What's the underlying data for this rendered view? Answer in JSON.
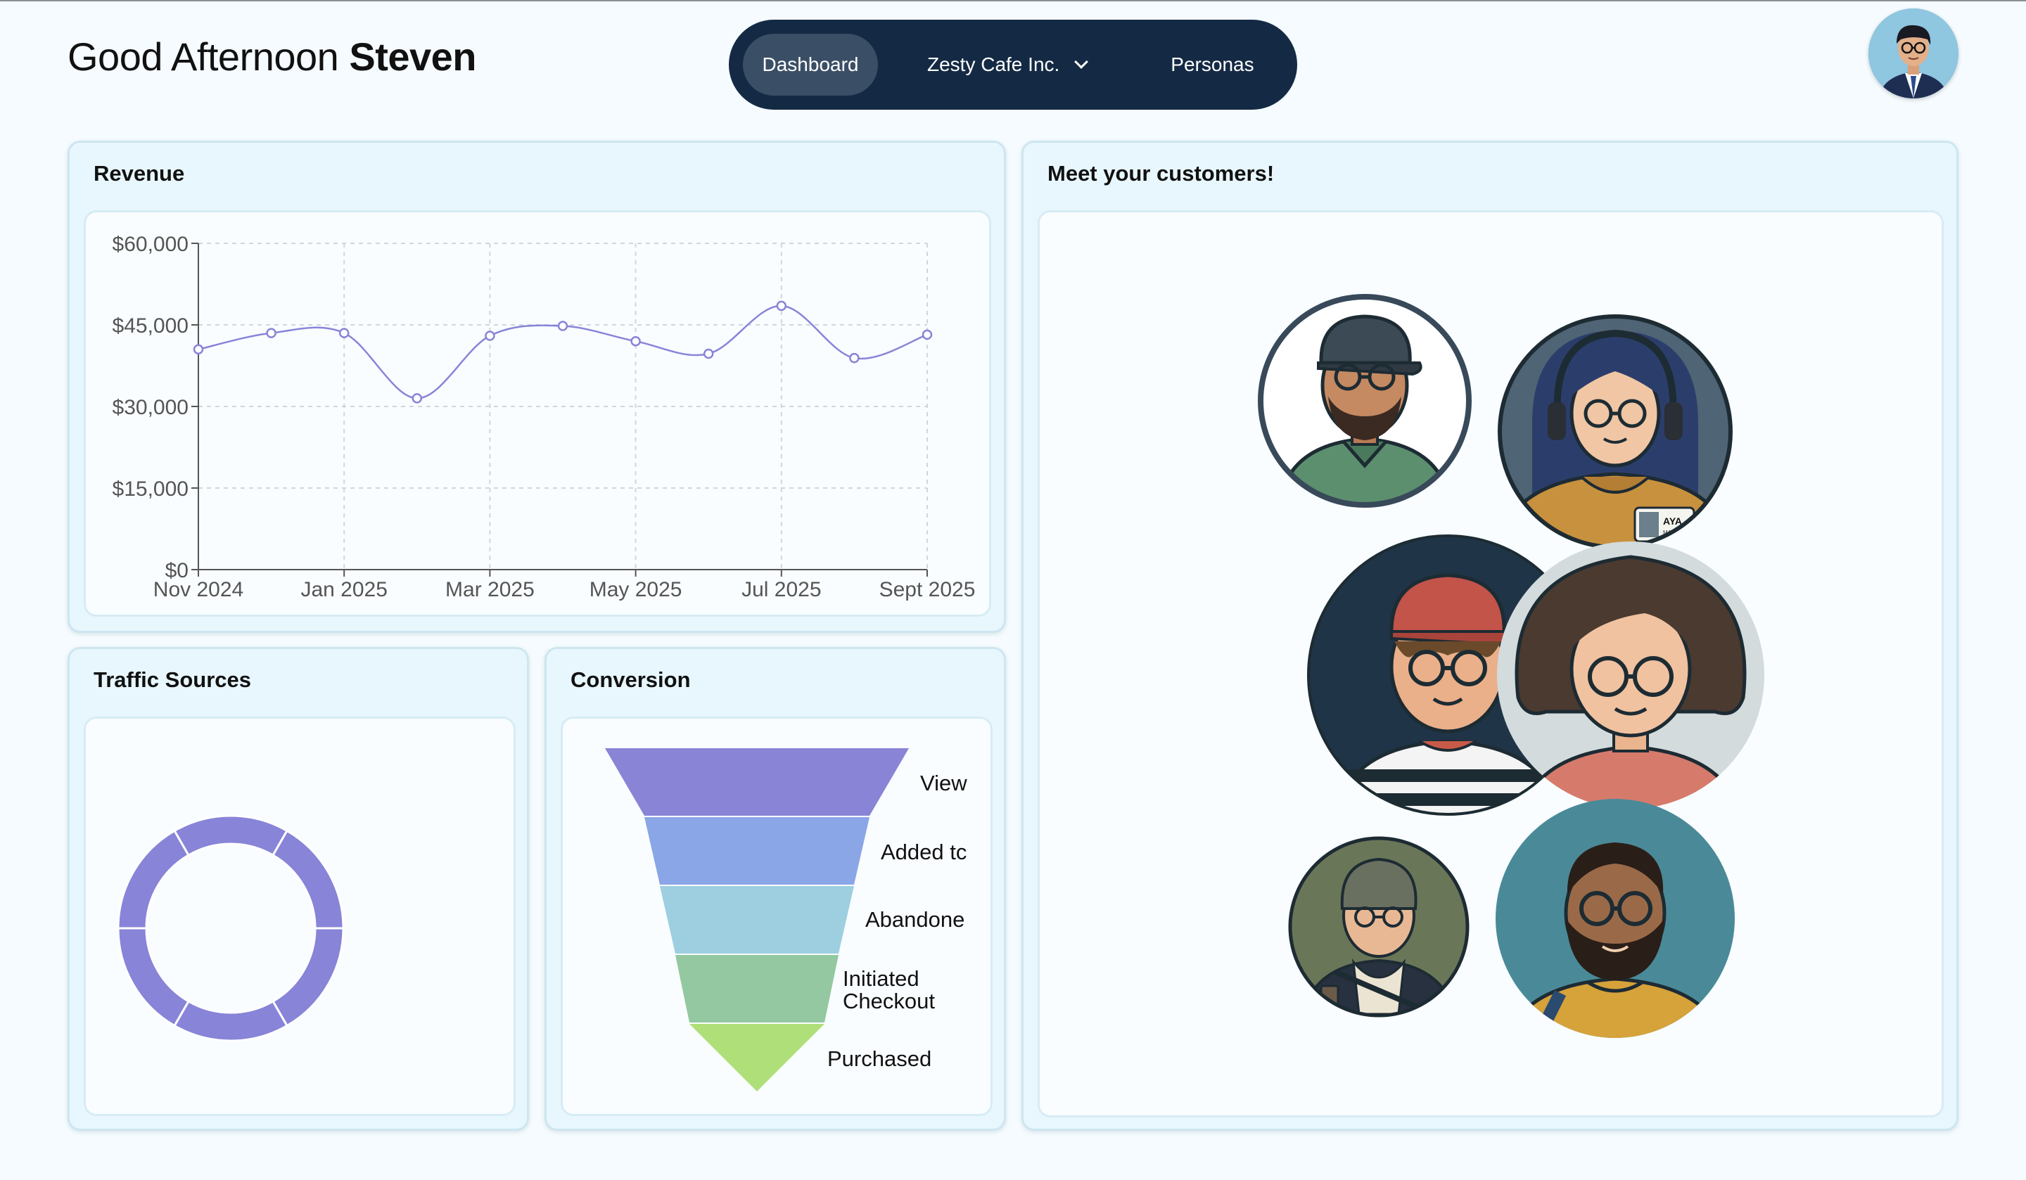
{
  "header": {
    "greeting_prefix": "Good Afternoon",
    "user_name": "Steven"
  },
  "nav": {
    "items": [
      {
        "label": "Dashboard",
        "active": true
      },
      {
        "label": "Zesty Cafe Inc.",
        "dropdown": true
      },
      {
        "label": "Personas"
      }
    ]
  },
  "revenue": {
    "title": "Revenue"
  },
  "traffic": {
    "title": "Traffic Sources"
  },
  "conversion": {
    "title": "Conversion",
    "stages": [
      {
        "label": "View",
        "color": "#8a84d6"
      },
      {
        "label": "Added tc",
        "color": "#8aa6e6"
      },
      {
        "label": "Abandone",
        "color": "#9dcfe0"
      },
      {
        "label": "Initiated Checkout",
        "line1": "Initiated",
        "line2": "Checkout",
        "color": "#93c8a0"
      },
      {
        "label": "Purchased",
        "color": "#aedf78"
      }
    ]
  },
  "customers": {
    "title": "Meet your customers!",
    "badge_name": "AYA",
    "badge_sub": "MADYEN"
  },
  "chart_data": [
    {
      "type": "line",
      "title": "",
      "xlabel": "",
      "ylabel": "",
      "x": [
        "Nov 2024",
        "Dec 2024",
        "Jan 2025",
        "Feb 2025",
        "Mar 2025",
        "Apr 2025",
        "May 2025",
        "Jun 2025",
        "Jul 2025",
        "Aug 2025",
        "Sept 2025"
      ],
      "x_tick_labels": [
        "Nov 2024",
        "Jan 2025",
        "Mar 2025",
        "May 2025",
        "Jul 2025",
        "Sept 2025"
      ],
      "y_tick_labels": [
        "$0",
        "$15,000",
        "$30,000",
        "$45,000",
        "$60,000"
      ],
      "series": [
        {
          "values": [
            40500,
            43500,
            43500,
            31500,
            43000,
            44800,
            42000,
            39700,
            48500,
            38900,
            43200
          ],
          "color": "#8884d8"
        }
      ],
      "ylim": [
        0,
        60000
      ],
      "grid": true,
      "grid_style": "dashed",
      "curve": "smooth"
    },
    {
      "type": "pie",
      "variant": "donut",
      "slices": 6,
      "values": [
        1,
        1,
        1,
        1,
        1,
        1
      ],
      "color": "#8884d8"
    }
  ]
}
